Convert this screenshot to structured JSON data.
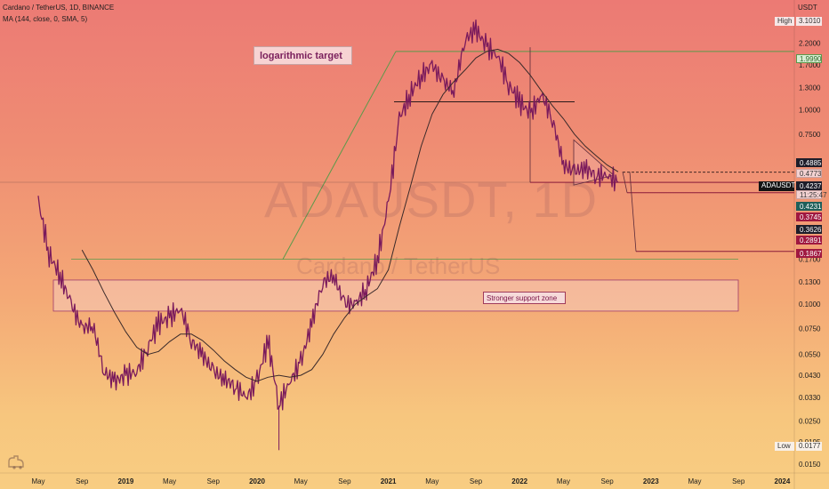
{
  "header": {
    "title": "Cardano / TetherUS, 1D, BINANCE",
    "indicator": "MA (144, close, 0, SMA, 5)"
  },
  "watermark": {
    "symbol": "ADAUSDT, 1D",
    "name": "Cardano / TetherUS"
  },
  "annotations": {
    "title_box": "logarithmic target",
    "support_zone_label": "Stronger support zone"
  },
  "price_axis": {
    "currency": "USDT",
    "high_label": "High",
    "high_value": "3.1010",
    "low_label": "Low",
    "low_value": "0.0177",
    "ticks": [
      "2.2000",
      "1.7000",
      "1.3000",
      "1.0000",
      "0.7500",
      "0.1700",
      "0.1300",
      "0.1000",
      "0.0750",
      "0.0550",
      "0.0430",
      "0.0330",
      "0.0250",
      "0.0195",
      "0.0150"
    ]
  },
  "price_tags": [
    {
      "value": "1.9990",
      "style": "green"
    },
    {
      "value": "0.4885",
      "style": "dark"
    },
    {
      "value": "0.4773",
      "style": "plain"
    },
    {
      "value": "0.4237",
      "style": "dark"
    },
    {
      "value": "11:25:47",
      "style": "plain"
    },
    {
      "value": "0.4231",
      "style": "teal"
    },
    {
      "value": "0.3745",
      "style": "red"
    },
    {
      "value": "0.3626",
      "style": "dark"
    },
    {
      "value": "0.2891",
      "style": "red"
    },
    {
      "value": "0.1867",
      "style": "red"
    }
  ],
  "symbol_tag": "ADAUSDT",
  "time_axis": {
    "labels": [
      "May",
      "Sep",
      "2019",
      "May",
      "Sep",
      "2020",
      "May",
      "Sep",
      "2021",
      "May",
      "Sep",
      "2022",
      "May",
      "Sep",
      "2023",
      "May",
      "Sep",
      "2024"
    ]
  },
  "colors": {
    "candle": "#7a1a5c",
    "ma": "#3a2a2a",
    "target_line": "#5a9a4a",
    "support_zone_border": "#a03a6a",
    "level_line": "#8a1a3a"
  },
  "chart_data": {
    "type": "candlestick",
    "title": "Cardano / TetherUS, 1D, BINANCE",
    "y_scale": "log",
    "ylim": [
      0.0135,
      3.6
    ],
    "x": [
      "2018-05",
      "2018-06",
      "2018-07",
      "2018-08",
      "2018-09",
      "2018-10",
      "2018-11",
      "2018-12",
      "2019-01",
      "2019-02",
      "2019-03",
      "2019-04",
      "2019-05",
      "2019-06",
      "2019-07",
      "2019-08",
      "2019-09",
      "2019-10",
      "2019-11",
      "2019-12",
      "2020-01",
      "2020-02",
      "2020-03",
      "2020-04",
      "2020-05",
      "2020-06",
      "2020-07",
      "2020-08",
      "2020-09",
      "2020-10",
      "2020-11",
      "2020-12",
      "2021-01",
      "2021-02",
      "2021-03",
      "2021-04",
      "2021-05",
      "2021-06",
      "2021-07",
      "2021-08",
      "2021-09",
      "2021-10",
      "2021-11",
      "2021-12",
      "2022-01",
      "2022-02",
      "2022-03",
      "2022-04",
      "2022-05",
      "2022-06",
      "2022-07",
      "2022-08",
      "2022-09",
      "2022-10"
    ],
    "series": [
      {
        "name": "ADAUSDT",
        "values": [
          0.34,
          0.18,
          0.14,
          0.1,
          0.075,
          0.078,
          0.045,
          0.04,
          0.043,
          0.045,
          0.06,
          0.08,
          0.085,
          0.095,
          0.065,
          0.055,
          0.045,
          0.041,
          0.038,
          0.033,
          0.04,
          0.065,
          0.03,
          0.04,
          0.05,
          0.08,
          0.13,
          0.14,
          0.1,
          0.1,
          0.12,
          0.17,
          0.33,
          0.9,
          1.2,
          1.5,
          1.7,
          1.4,
          1.25,
          2.3,
          2.6,
          2.1,
          1.9,
          1.35,
          1.1,
          0.95,
          1.2,
          0.9,
          0.52,
          0.48,
          0.5,
          0.46,
          0.46,
          0.4237
        ]
      },
      {
        "name": "MA (144, close, 0, SMA, 5)",
        "values": [
          null,
          null,
          null,
          null,
          0.19,
          0.15,
          0.115,
          0.09,
          0.072,
          0.06,
          0.055,
          0.057,
          0.064,
          0.07,
          0.07,
          0.065,
          0.058,
          0.051,
          0.046,
          0.042,
          0.04,
          0.042,
          0.043,
          0.042,
          0.043,
          0.046,
          0.055,
          0.07,
          0.085,
          0.1,
          0.11,
          0.12,
          0.15,
          0.25,
          0.4,
          0.65,
          0.95,
          1.2,
          1.4,
          1.6,
          1.85,
          2.0,
          2.05,
          1.95,
          1.75,
          1.5,
          1.25,
          1.05,
          0.9,
          0.75,
          0.65,
          0.58,
          0.52,
          0.48
        ]
      }
    ],
    "levels": [
      1.999,
      1.1,
      0.4885,
      0.4773,
      0.4231,
      0.3745,
      0.2891,
      0.1867
    ],
    "support_zone": [
      0.092,
      0.133
    ],
    "xlabel": "",
    "ylabel": "USDT"
  }
}
